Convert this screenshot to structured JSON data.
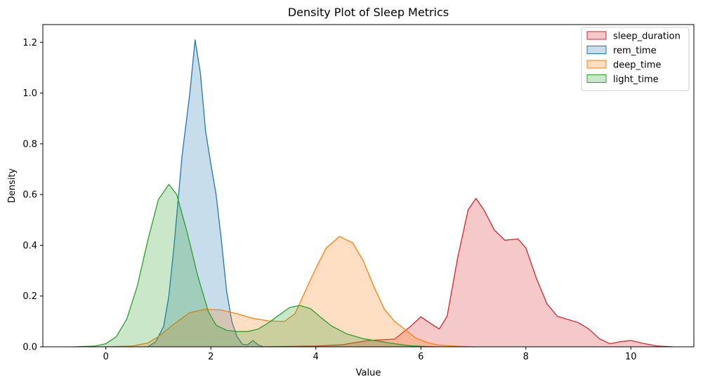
{
  "chart_data": {
    "type": "area",
    "title": "Density Plot of Sleep Metrics",
    "xlabel": "Value",
    "ylabel": "Density",
    "xlim": [
      -1.2,
      11.2
    ],
    "ylim": [
      0,
      1.27
    ],
    "xticks": [
      0,
      2,
      4,
      6,
      8,
      10
    ],
    "yticks": [
      0.0,
      0.2,
      0.4,
      0.6,
      0.8,
      1.0,
      1.2
    ],
    "ytick_labels": [
      "0.0",
      "0.2",
      "0.4",
      "0.6",
      "0.8",
      "1.0",
      "1.2"
    ],
    "grid": false,
    "legend_position": "top-right",
    "series": [
      {
        "name": "sleep_duration",
        "color": "#d62728",
        "fill": "#f4c4c6",
        "points": [
          [
            3.0,
            0.0
          ],
          [
            4.0,
            0.003
          ],
          [
            4.5,
            0.008
          ],
          [
            5.0,
            0.025
          ],
          [
            5.5,
            0.03
          ],
          [
            5.8,
            0.08
          ],
          [
            6.0,
            0.118
          ],
          [
            6.2,
            0.09
          ],
          [
            6.35,
            0.07
          ],
          [
            6.5,
            0.12
          ],
          [
            6.7,
            0.35
          ],
          [
            6.9,
            0.54
          ],
          [
            7.05,
            0.585
          ],
          [
            7.2,
            0.54
          ],
          [
            7.4,
            0.46
          ],
          [
            7.6,
            0.42
          ],
          [
            7.85,
            0.425
          ],
          [
            8.0,
            0.39
          ],
          [
            8.2,
            0.27
          ],
          [
            8.4,
            0.17
          ],
          [
            8.6,
            0.12
          ],
          [
            8.8,
            0.108
          ],
          [
            9.0,
            0.095
          ],
          [
            9.2,
            0.07
          ],
          [
            9.4,
            0.032
          ],
          [
            9.6,
            0.012
          ],
          [
            9.8,
            0.02
          ],
          [
            10.0,
            0.025
          ],
          [
            10.2,
            0.015
          ],
          [
            10.5,
            0.003
          ],
          [
            10.8,
            0.0
          ]
        ]
      },
      {
        "name": "rem_time",
        "color": "#1f77b4",
        "fill": "#c2d8ea",
        "points": [
          [
            0.8,
            0.0
          ],
          [
            0.95,
            0.02
          ],
          [
            1.1,
            0.08
          ],
          [
            1.2,
            0.2
          ],
          [
            1.3,
            0.4
          ],
          [
            1.45,
            0.75
          ],
          [
            1.6,
            1.0
          ],
          [
            1.7,
            1.21
          ],
          [
            1.8,
            1.08
          ],
          [
            1.9,
            0.85
          ],
          [
            2.0,
            0.72
          ],
          [
            2.1,
            0.6
          ],
          [
            2.2,
            0.42
          ],
          [
            2.3,
            0.22
          ],
          [
            2.4,
            0.1
          ],
          [
            2.5,
            0.04
          ],
          [
            2.6,
            0.01
          ],
          [
            2.7,
            0.008
          ],
          [
            2.8,
            0.025
          ],
          [
            2.9,
            0.008
          ],
          [
            3.0,
            0.0
          ]
        ]
      },
      {
        "name": "deep_time",
        "color": "#ff7f0e",
        "fill": "#ffd9b6",
        "points": [
          [
            0.0,
            0.0
          ],
          [
            0.5,
            0.003
          ],
          [
            0.8,
            0.015
          ],
          [
            1.0,
            0.04
          ],
          [
            1.3,
            0.09
          ],
          [
            1.6,
            0.135
          ],
          [
            1.9,
            0.148
          ],
          [
            2.2,
            0.145
          ],
          [
            2.5,
            0.13
          ],
          [
            2.8,
            0.112
          ],
          [
            3.1,
            0.102
          ],
          [
            3.4,
            0.1
          ],
          [
            3.6,
            0.13
          ],
          [
            3.8,
            0.22
          ],
          [
            4.0,
            0.31
          ],
          [
            4.2,
            0.39
          ],
          [
            4.45,
            0.435
          ],
          [
            4.7,
            0.41
          ],
          [
            4.9,
            0.34
          ],
          [
            5.1,
            0.24
          ],
          [
            5.3,
            0.15
          ],
          [
            5.5,
            0.1
          ],
          [
            5.7,
            0.068
          ],
          [
            5.9,
            0.035
          ],
          [
            6.1,
            0.018
          ],
          [
            6.3,
            0.008
          ],
          [
            6.6,
            0.003
          ],
          [
            7.0,
            0.0
          ]
        ]
      },
      {
        "name": "light_time",
        "color": "#2ca02c",
        "fill": "#c3e3c0",
        "points": [
          [
            -0.6,
            0.0
          ],
          [
            -0.2,
            0.003
          ],
          [
            0.0,
            0.012
          ],
          [
            0.2,
            0.04
          ],
          [
            0.4,
            0.11
          ],
          [
            0.6,
            0.24
          ],
          [
            0.8,
            0.42
          ],
          [
            1.0,
            0.58
          ],
          [
            1.2,
            0.64
          ],
          [
            1.35,
            0.6
          ],
          [
            1.55,
            0.45
          ],
          [
            1.75,
            0.28
          ],
          [
            1.95,
            0.14
          ],
          [
            2.1,
            0.085
          ],
          [
            2.3,
            0.065
          ],
          [
            2.5,
            0.06
          ],
          [
            2.7,
            0.06
          ],
          [
            2.9,
            0.07
          ],
          [
            3.1,
            0.095
          ],
          [
            3.3,
            0.125
          ],
          [
            3.5,
            0.155
          ],
          [
            3.7,
            0.163
          ],
          [
            3.9,
            0.15
          ],
          [
            4.1,
            0.115
          ],
          [
            4.3,
            0.082
          ],
          [
            4.6,
            0.05
          ],
          [
            4.9,
            0.032
          ],
          [
            5.2,
            0.022
          ],
          [
            5.5,
            0.012
          ],
          [
            5.8,
            0.004
          ],
          [
            6.1,
            0.001
          ],
          [
            6.3,
            0.0
          ]
        ]
      }
    ]
  }
}
